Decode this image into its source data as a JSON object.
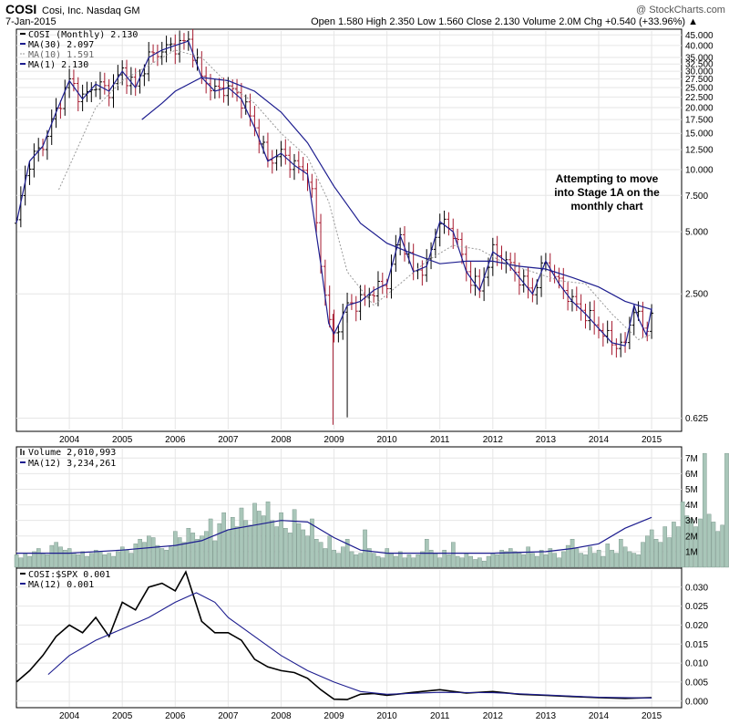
{
  "header": {
    "symbol": "COSI",
    "company": "Cosi, Inc.  Nasdaq GM",
    "date": "7-Jan-2015",
    "watermark": "@ StockCharts.com",
    "ohlc_text": "Open 1.580   High 2.350   Low 1.560   Close 2.130   Volume 2.0M   Chg +0.540 (+33.96%) ▲"
  },
  "price_panel": {
    "legend": {
      "main": "COSI (Monthly) 2.130",
      "ma30": "MA(30) 2.097",
      "ma10": "MA(10) 1.591",
      "ma1": "MA(1) 2.130"
    },
    "annotation": [
      "Attempting to move",
      "into Stage 1A on the",
      "monthly chart"
    ],
    "y_ticks": [
      {
        "value": 45,
        "label": "45.000"
      },
      {
        "value": 40,
        "label": "40.000"
      },
      {
        "value": 35,
        "label": "35.000"
      },
      {
        "value": 32.5,
        "label": "32.500"
      },
      {
        "value": 30,
        "label": "30.000"
      },
      {
        "value": 27.5,
        "label": "27.500"
      },
      {
        "value": 25,
        "label": "25.000"
      },
      {
        "value": 22.5,
        "label": "22.500"
      },
      {
        "value": 20,
        "label": "20.000"
      },
      {
        "value": 17.5,
        "label": "17.500"
      },
      {
        "value": 15,
        "label": "15.000"
      },
      {
        "value": 12.5,
        "label": "12.500"
      },
      {
        "value": 10,
        "label": "10.000"
      },
      {
        "value": 7.5,
        "label": "7.500"
      },
      {
        "value": 5,
        "label": "5.000"
      },
      {
        "value": 2.5,
        "label": "2.500"
      },
      {
        "value": 0.625,
        "label": "0.625"
      }
    ]
  },
  "volume_panel": {
    "legend": {
      "main": "Volume 2,010,993",
      "ma": "MA(12) 3,234,261"
    },
    "y_ticks": [
      {
        "value": 1,
        "label": "1M"
      },
      {
        "value": 2,
        "label": "2M"
      },
      {
        "value": 3,
        "label": "3M"
      },
      {
        "value": 4,
        "label": "4M"
      },
      {
        "value": 5,
        "label": "5M"
      },
      {
        "value": 6,
        "label": "6M"
      },
      {
        "value": 7,
        "label": "7M"
      }
    ]
  },
  "ratio_panel": {
    "legend": {
      "main": "COSI:$SPX 0.001",
      "ma": "MA(12) 0.001"
    },
    "y_ticks": [
      {
        "value": 0,
        "label": "0.000"
      },
      {
        "value": 0.005,
        "label": "0.005"
      },
      {
        "value": 0.01,
        "label": "0.010"
      },
      {
        "value": 0.015,
        "label": "0.015"
      },
      {
        "value": 0.02,
        "label": "0.020"
      },
      {
        "value": 0.025,
        "label": "0.025"
      },
      {
        "value": 0.03,
        "label": "0.030"
      }
    ]
  },
  "x_ticks": [
    {
      "value": 2004,
      "label": "2004"
    },
    {
      "value": 2005,
      "label": "2005"
    },
    {
      "value": 2006,
      "label": "2006"
    },
    {
      "value": 2007,
      "label": "2007"
    },
    {
      "value": 2008,
      "label": "2008"
    },
    {
      "value": 2009,
      "label": "2009"
    },
    {
      "value": 2010,
      "label": "2010"
    },
    {
      "value": 2011,
      "label": "2011"
    },
    {
      "value": 2012,
      "label": "2012"
    },
    {
      "value": 2013,
      "label": "2013"
    },
    {
      "value": 2014,
      "label": "2014"
    },
    {
      "value": 2015,
      "label": "2015"
    }
  ],
  "colors": {
    "up_bar": "#000000",
    "down_bar": "#a6192e",
    "ma_line": "#1d1d8f",
    "ma10_line": "#9a9a9a",
    "volume_bar": "#a9c6b9",
    "volume_edge": "#6f8d80",
    "ratio_line": "#000000",
    "grid": "#e6e6e6"
  },
  "chart_data": [
    {
      "type": "line",
      "panel": "price",
      "scale": "log",
      "ylim": [
        0.55,
        47
      ],
      "xlim": [
        2003.0,
        2015.05
      ],
      "series": [
        {
          "name": "COSI (Monthly)",
          "x": [
            2003.0,
            2003.25,
            2003.5,
            2003.75,
            2004.0,
            2004.25,
            2004.5,
            2004.75,
            2005.0,
            2005.25,
            2005.5,
            2005.75,
            2006.0,
            2006.25,
            2006.5,
            2006.75,
            2007.0,
            2007.25,
            2007.5,
            2007.75,
            2008.0,
            2008.25,
            2008.5,
            2008.75,
            2008.9,
            2009.0,
            2009.1,
            2009.25,
            2009.5,
            2009.75,
            2010.0,
            2010.25,
            2010.5,
            2010.75,
            2011.0,
            2011.25,
            2011.5,
            2011.75,
            2012.0,
            2012.25,
            2012.5,
            2012.75,
            2013.0,
            2013.25,
            2013.5,
            2013.75,
            2014.0,
            2014.25,
            2014.5,
            2014.67,
            2014.75,
            2014.9,
            2015.0
          ],
          "values": [
            5.5,
            11.0,
            13.0,
            19.0,
            27.0,
            22.0,
            26.0,
            24.0,
            30.0,
            25.0,
            35.0,
            38.0,
            40.0,
            42.0,
            28.0,
            24.0,
            25.0,
            22.0,
            16.0,
            11.0,
            12.0,
            10.5,
            9.5,
            3.5,
            1.8,
            1.6,
            1.8,
            2.2,
            2.3,
            2.6,
            2.8,
            4.8,
            3.2,
            3.4,
            5.6,
            5.0,
            3.2,
            2.6,
            4.0,
            3.6,
            3.0,
            2.5,
            3.6,
            2.8,
            2.3,
            2.0,
            1.7,
            1.45,
            1.4,
            2.2,
            1.9,
            1.58,
            2.13
          ]
        },
        {
          "name": "MA(30)",
          "x": [
            2005.37,
            2005.75,
            2006.0,
            2006.5,
            2007.0,
            2007.5,
            2008.0,
            2008.5,
            2009.0,
            2009.5,
            2010.0,
            2010.5,
            2011.0,
            2011.5,
            2012.0,
            2012.5,
            2013.0,
            2013.5,
            2014.0,
            2014.5,
            2015.0
          ],
          "values": [
            17.5,
            21.0,
            24.0,
            28.0,
            27.0,
            24.0,
            19.0,
            13.5,
            8.3,
            5.5,
            4.4,
            3.9,
            3.5,
            3.6,
            3.6,
            3.4,
            3.3,
            3.0,
            2.7,
            2.3,
            2.1
          ]
        },
        {
          "name": "MA(10)",
          "x": [
            2003.8,
            2004.5,
            2005.0,
            2005.5,
            2006.0,
            2006.5,
            2007.0,
            2007.5,
            2008.0,
            2008.5,
            2008.9,
            2009.25,
            2009.75,
            2010.25,
            2010.75,
            2011.25,
            2011.75,
            2012.25,
            2012.75,
            2013.25,
            2013.75,
            2014.25,
            2014.75,
            2015.0
          ],
          "values": [
            8.0,
            20.0,
            27.0,
            32.0,
            38.0,
            35.0,
            26.0,
            21.0,
            15.0,
            11.5,
            7.0,
            3.2,
            2.2,
            2.8,
            3.6,
            4.3,
            4.1,
            3.5,
            3.2,
            2.9,
            2.8,
            2.0,
            1.5,
            1.59
          ]
        }
      ],
      "annotations": [
        "Attempting to move",
        "into Stage 1A on the",
        "monthly chart"
      ]
    },
    {
      "type": "bar",
      "panel": "volume",
      "ylim": [
        0,
        7.6
      ],
      "series": [
        {
          "name": "Volume",
          "note": "monthly volume in millions, Jan-2003 .. Jan-2015",
          "values": [
            0.8,
            0.6,
            0.9,
            0.7,
            1.0,
            1.2,
            0.9,
            0.8,
            1.4,
            1.6,
            1.3,
            1.1,
            1.2,
            0.9,
            0.8,
            1.0,
            0.7,
            0.9,
            1.1,
            1.0,
            0.8,
            0.9,
            0.7,
            1.0,
            1.3,
            1.1,
            0.9,
            1.5,
            1.8,
            1.6,
            2.0,
            1.9,
            1.4,
            1.2,
            1.1,
            1.3,
            2.3,
            1.9,
            1.6,
            2.5,
            2.2,
            1.8,
            2.0,
            2.3,
            3.1,
            1.7,
            2.8,
            3.5,
            2.4,
            3.2,
            2.6,
            3.8,
            3.0,
            2.7,
            4.1,
            3.6,
            3.3,
            4.2,
            3.0,
            2.6,
            3.5,
            2.5,
            2.2,
            3.7,
            2.8,
            2.4,
            2.0,
            3.1,
            1.8,
            1.6,
            1.2,
            2.0,
            1.1,
            0.9,
            1.3,
            1.8,
            1.0,
            0.8,
            0.9,
            2.4,
            1.2,
            0.9,
            0.7,
            0.6,
            1.2,
            0.9,
            0.7,
            1.0,
            0.6,
            0.8,
            0.6,
            0.8,
            1.0,
            1.8,
            1.1,
            0.9,
            0.6,
            1.1,
            0.8,
            1.6,
            0.7,
            0.6,
            0.9,
            0.7,
            0.5,
            0.6,
            0.4,
            0.7,
            0.9,
            0.8,
            1.1,
            1.0,
            1.2,
            1.0,
            0.9,
            0.8,
            1.3,
            0.9,
            0.7,
            1.1,
            0.8,
            1.2,
            0.9,
            0.6,
            1.0,
            1.4,
            1.8,
            1.2,
            0.9,
            0.8,
            1.3,
            0.9,
            1.1,
            0.7,
            1.5,
            1.1,
            0.9,
            1.8,
            1.3,
            1.0,
            0.9,
            0.8,
            1.6,
            2.0,
            2.4,
            1.8,
            1.6,
            2.6,
            1.9,
            2.9,
            2.6,
            4.2,
            3.3,
            3.1,
            2.6,
            3.1,
            7.3,
            3.4,
            2.9,
            2.3,
            2.7,
            7.3,
            3.1,
            2.9,
            3.7,
            2.0
          ]
        },
        {
          "name": "MA(12)",
          "x": [
            2003.0,
            2004.0,
            2005.0,
            2006.0,
            2006.5,
            2007.0,
            2007.5,
            2008.0,
            2008.5,
            2009.0,
            2009.5,
            2010.0,
            2011.0,
            2012.0,
            2013.0,
            2013.5,
            2014.0,
            2014.5,
            2015.0
          ],
          "values": [
            0.9,
            0.9,
            1.1,
            1.4,
            1.7,
            2.4,
            2.7,
            3.0,
            2.9,
            1.9,
            1.1,
            0.9,
            0.9,
            0.9,
            1.0,
            1.2,
            1.5,
            2.5,
            3.2
          ]
        }
      ]
    },
    {
      "type": "line",
      "panel": "ratio",
      "ylim": [
        -0.0015,
        0.0345
      ],
      "series": [
        {
          "name": "COSI:$SPX",
          "x": [
            2003.0,
            2003.25,
            2003.5,
            2003.75,
            2004.0,
            2004.25,
            2004.5,
            2004.75,
            2005.0,
            2005.25,
            2005.5,
            2005.75,
            2006.0,
            2006.2,
            2006.5,
            2006.75,
            2007.0,
            2007.25,
            2007.5,
            2007.75,
            2008.0,
            2008.25,
            2008.5,
            2008.75,
            2009.0,
            2009.25,
            2009.5,
            2009.75,
            2010.0,
            2010.5,
            2011.0,
            2011.5,
            2012.0,
            2012.5,
            2013.0,
            2013.5,
            2014.0,
            2014.5,
            2015.0
          ],
          "values": [
            0.005,
            0.008,
            0.012,
            0.017,
            0.02,
            0.018,
            0.022,
            0.017,
            0.026,
            0.024,
            0.03,
            0.031,
            0.029,
            0.034,
            0.021,
            0.018,
            0.018,
            0.016,
            0.011,
            0.009,
            0.008,
            0.0075,
            0.006,
            0.003,
            0.0005,
            0.0004,
            0.0018,
            0.002,
            0.0015,
            0.0023,
            0.003,
            0.0021,
            0.0025,
            0.0018,
            0.0015,
            0.0012,
            0.0009,
            0.0007,
            0.0009
          ]
        },
        {
          "name": "MA(12)",
          "x": [
            2003.6,
            2004.0,
            2004.5,
            2005.0,
            2005.5,
            2006.0,
            2006.4,
            2006.75,
            2007.0,
            2007.5,
            2008.0,
            2008.5,
            2009.0,
            2009.5,
            2010.0,
            2011.0,
            2012.0,
            2013.0,
            2014.0,
            2015.0
          ],
          "values": [
            0.007,
            0.012,
            0.016,
            0.019,
            0.022,
            0.026,
            0.0285,
            0.026,
            0.022,
            0.017,
            0.012,
            0.008,
            0.005,
            0.0025,
            0.0018,
            0.0023,
            0.0022,
            0.0016,
            0.001,
            0.0008
          ]
        }
      ]
    }
  ]
}
